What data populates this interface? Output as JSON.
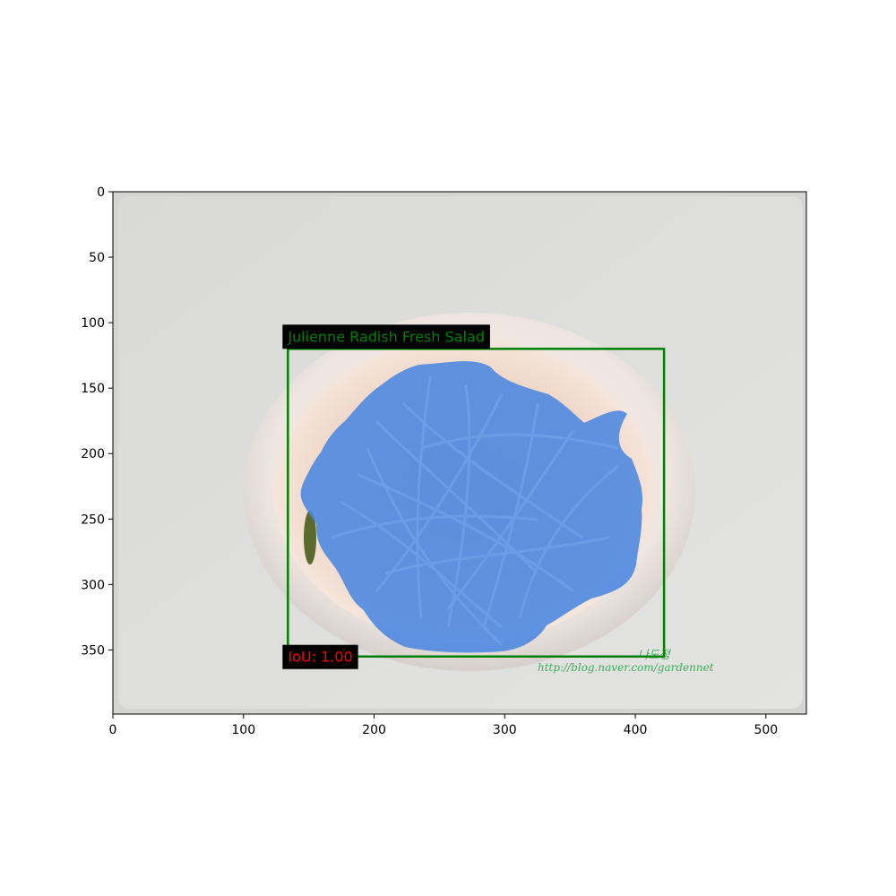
{
  "image": {
    "description_free": true,
    "width_units": 531,
    "height_units": 399
  },
  "axes": {
    "x_ticks": [
      0,
      100,
      200,
      300,
      400,
      500
    ],
    "y_ticks": [
      0,
      50,
      100,
      150,
      200,
      250,
      300,
      350
    ],
    "xlim": [
      0,
      531
    ],
    "ylim": [
      399,
      0
    ]
  },
  "annotation": {
    "category_label": "Julienne Radish Fresh Salad",
    "iou_label": "IoU: 1.00",
    "box": {
      "x0": 134,
      "y0": 120,
      "x1": 422,
      "y1": 355
    },
    "box_color": "#008000",
    "iou_color": "#ff0000",
    "mask_color": "#4a86e0"
  },
  "watermark": {
    "line1": "나도정",
    "line2": "http://blog.naver.com/gardennet",
    "color": "#3fae5a"
  }
}
